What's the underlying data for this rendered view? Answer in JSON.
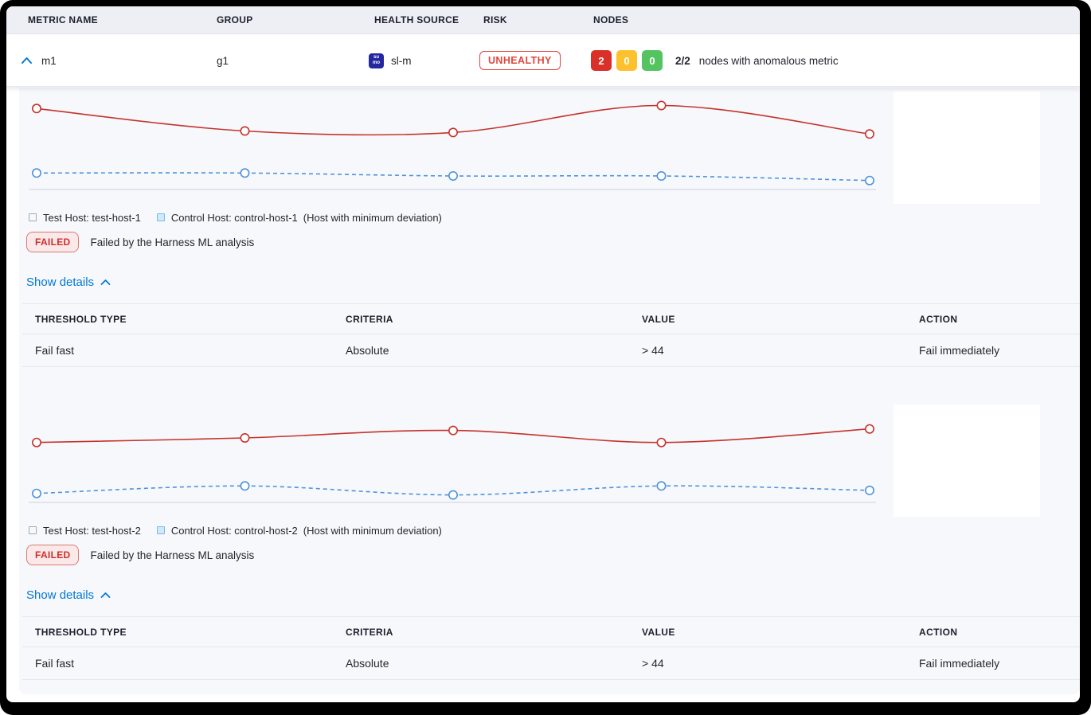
{
  "table_header": {
    "metric_name": "METRIC NAME",
    "group": "GROUP",
    "health_source": "HEALTH SOURCE",
    "risk": "RISK",
    "nodes": "NODES"
  },
  "metric_row": {
    "name": "m1",
    "group": "g1",
    "health_source": {
      "icon": "sumo-logic-icon",
      "icon_text_top": "su",
      "icon_text_bottom": "mo",
      "label": "sl-m"
    },
    "risk": {
      "label": "UNHEALTHY",
      "color": "#e2453c"
    },
    "nodes": {
      "counts": [
        {
          "value": "2",
          "color": "#da3028"
        },
        {
          "value": "0",
          "color": "#fcc12c"
        },
        {
          "value": "0",
          "color": "#53c45f"
        }
      ],
      "ratio": "2/2",
      "summary": "nodes with anomalous metric"
    }
  },
  "hosts": [
    {
      "legend_test": "Test Host: test-host-1",
      "legend_control": "Control Host: control-host-1",
      "legend_note": "(Host with minimum deviation)",
      "status_badge": "FAILED",
      "status_text": "Failed by the Harness ML analysis",
      "details_link": "Show details",
      "table": {
        "headers": [
          "THRESHOLD TYPE",
          "CRITERIA",
          "VALUE",
          "ACTION"
        ],
        "rows": [
          [
            "Fail fast",
            "Absolute",
            "> 44",
            "Fail immediately"
          ]
        ]
      }
    },
    {
      "legend_test": "Test Host: test-host-2",
      "legend_control": "Control Host: control-host-2",
      "legend_note": "(Host with minimum deviation)",
      "status_badge": "FAILED",
      "status_text": "Failed by the Harness ML analysis",
      "details_link": "Show details",
      "table": {
        "headers": [
          "THRESHOLD TYPE",
          "CRITERIA",
          "VALUE",
          "ACTION"
        ],
        "rows": [
          [
            "Fail fast",
            "Absolute",
            "> 44",
            "Fail immediately"
          ]
        ]
      }
    }
  ],
  "chart_data": [
    {
      "type": "line",
      "x": [
        1,
        2,
        3,
        4,
        5
      ],
      "series": [
        {
          "name": "Test Host: test-host-1",
          "style": "solid",
          "color": "#c5332c",
          "values": [
            54,
            39,
            38,
            56,
            37
          ]
        },
        {
          "name": "Control Host: control-host-1",
          "style": "dashed",
          "color": "#4e93dd",
          "values": [
            11,
            11,
            9,
            9,
            6
          ]
        }
      ],
      "title": "",
      "xlabel": "",
      "ylabel": "",
      "ylim": [
        0,
        60
      ],
      "grid": false,
      "legend_position": "bottom"
    },
    {
      "type": "line",
      "x": [
        1,
        2,
        3,
        4,
        5
      ],
      "series": [
        {
          "name": "Test Host: test-host-2",
          "style": "solid",
          "color": "#c5332c",
          "values": [
            40,
            43,
            48,
            40,
            49
          ]
        },
        {
          "name": "Control Host: control-host-2",
          "style": "dashed",
          "color": "#4e93dd",
          "values": [
            6,
            11,
            5,
            11,
            8
          ]
        }
      ],
      "title": "",
      "xlabel": "",
      "ylabel": "",
      "ylim": [
        0,
        60
      ],
      "grid": false,
      "legend_position": "bottom"
    }
  ],
  "colors": {
    "accent_blue": "#0278d5",
    "risk_red": "#e2453c",
    "node_red": "#da3028",
    "node_yellow": "#fcc12c",
    "node_green": "#53c45f",
    "test_line": "#c5332c",
    "control_line": "#4e93dd",
    "failed_bg": "#fbe9e9",
    "failed_text": "#cf2e28",
    "panel_bg": "#f7f8fc",
    "header_bg": "#edeff5",
    "axis_line": "#c9d0e2"
  }
}
